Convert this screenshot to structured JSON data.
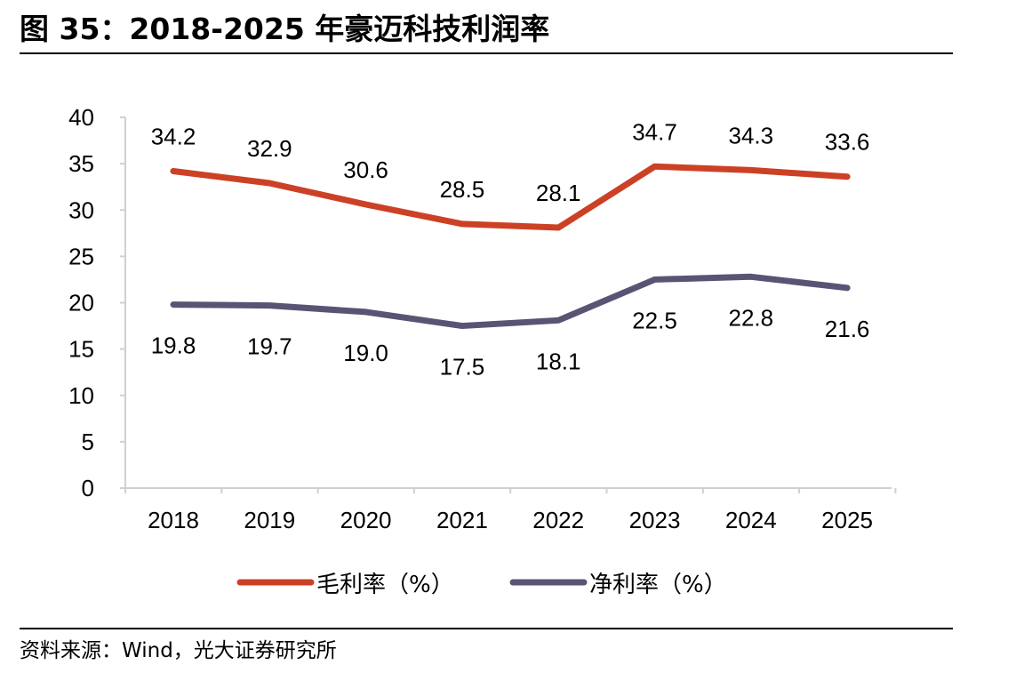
{
  "title": "图 35：2018-2025 年豪迈科技利润率",
  "source": "资料来源：Wind，光大证券研究所",
  "chart_data": {
    "type": "line",
    "categories": [
      "2018",
      "2019",
      "2020",
      "2021",
      "2022",
      "2023",
      "2024",
      "2025"
    ],
    "ylim": [
      0,
      40
    ],
    "yticks": [
      "0",
      "5",
      "10",
      "15",
      "20",
      "25",
      "30",
      "35",
      "40"
    ],
    "grid": false,
    "legend_position": "bottom",
    "series": [
      {
        "name": "毛利率（%）",
        "color": "#cc4125",
        "values": [
          34.2,
          32.9,
          30.6,
          28.5,
          28.1,
          34.7,
          34.3,
          33.6
        ],
        "labels": [
          "34.2",
          "32.9",
          "30.6",
          "28.5",
          "28.1",
          "34.7",
          "34.3",
          "33.6"
        ]
      },
      {
        "name": "净利率（%）",
        "color": "#5a5474",
        "values": [
          19.8,
          19.7,
          19.0,
          17.5,
          18.1,
          22.5,
          22.8,
          21.6
        ],
        "labels": [
          "19.8",
          "19.7",
          "19.0",
          "17.5",
          "18.1",
          "22.5",
          "22.8",
          "21.6"
        ]
      }
    ]
  }
}
